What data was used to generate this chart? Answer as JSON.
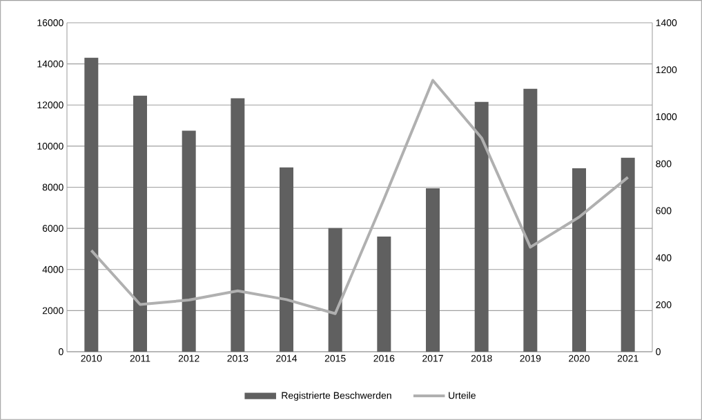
{
  "chart_data": {
    "type": "bar",
    "categories": [
      "2010",
      "2011",
      "2012",
      "2013",
      "2014",
      "2015",
      "2016",
      "2017",
      "2018",
      "2019",
      "2020",
      "2021"
    ],
    "series": [
      {
        "name": "Registrierte Beschwerden",
        "color": "#606060",
        "values": [
          14300,
          12450,
          10750,
          12330,
          8960,
          6010,
          5600,
          7950,
          12150,
          12790,
          8920,
          9430
        ]
      },
      {
        "name": "Urteile",
        "type": "line",
        "axis": "y2",
        "color": "#b0b0b0",
        "values": [
          431,
          201,
          220,
          259,
          222,
          162,
          650,
          1155,
          910,
          445,
          573,
          742
        ]
      }
    ],
    "ylim": [
      0,
      16000
    ],
    "yticks": [
      0,
      2000,
      4000,
      6000,
      8000,
      10000,
      12000,
      14000,
      16000
    ],
    "y2lim": [
      0,
      1400
    ],
    "y2ticks": [
      0,
      200,
      400,
      600,
      800,
      1000,
      1200,
      1400
    ],
    "grid": "y",
    "legend": "bottom",
    "marker": "none",
    "line_style": "solid"
  }
}
